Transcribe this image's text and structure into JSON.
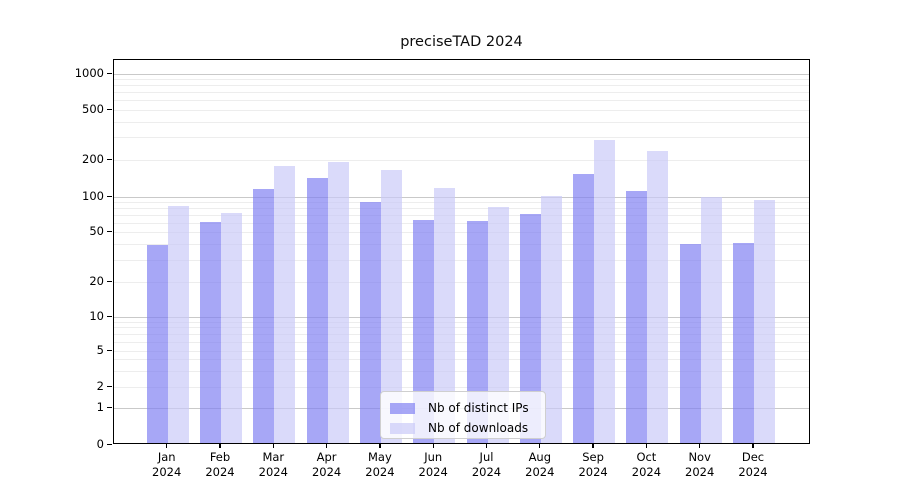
{
  "chart_data": {
    "type": "bar",
    "title": "preciseTAD 2024",
    "year_label": "2024",
    "categories": [
      "Jan",
      "Feb",
      "Mar",
      "Apr",
      "May",
      "Jun",
      "Jul",
      "Aug",
      "Sep",
      "Oct",
      "Nov",
      "Dec"
    ],
    "series": [
      {
        "name": "Nb of distinct IPs",
        "color": "#7d7df2",
        "values": [
          39,
          61,
          117,
          143,
          91,
          63,
          62,
          72,
          152,
          112,
          40,
          41
        ]
      },
      {
        "name": "Nb of downloads",
        "color": "#c8c8f8",
        "values": [
          83,
          73,
          176,
          190,
          164,
          118,
          82,
          102,
          285,
          235,
          100,
          95
        ]
      }
    ],
    "y_ticks": [
      0,
      1,
      2,
      5,
      10,
      20,
      50,
      100,
      200,
      500,
      1000
    ],
    "scale": "log-like",
    "ylim": [
      0,
      1250
    ],
    "grid": "horizontal major (1,10,100,1000) + minor (2-9 per decade)",
    "legend_position": "inside-bottom-center",
    "colors": {
      "major_grid": "#c9c9c9",
      "minor_grid": "#ededed",
      "axis": "#000000",
      "bar_ips_rendered": "#a8a8f6",
      "bar_downloads_rendered": "#dadafa"
    }
  }
}
